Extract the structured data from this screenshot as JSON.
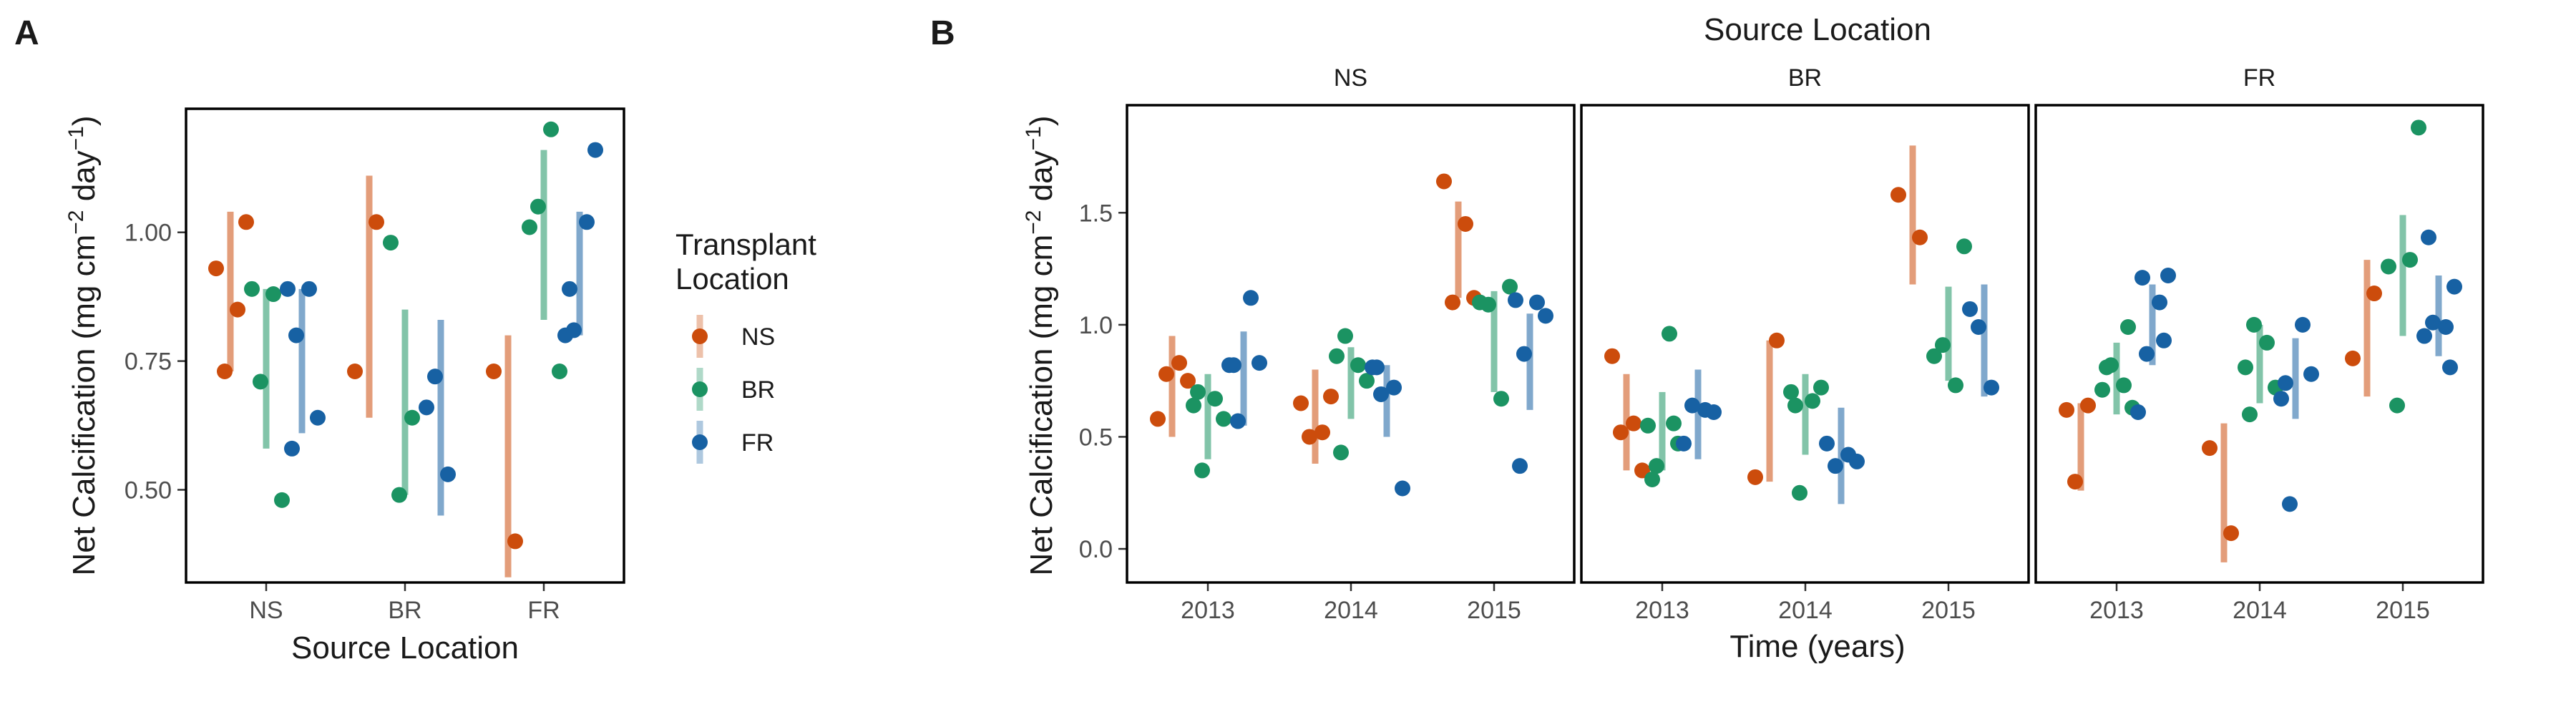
{
  "chart_data": [
    {
      "panel_label": "A",
      "type": "scatter",
      "xlabel": "Source Location",
      "ylabel": "Net Calcification (mg cm",
      "ylabel_unit_mid": " day",
      "ylabel_end": ")",
      "ylabel_sup1": "−2",
      "ylabel_sup2": "−1",
      "categories": [
        "NS",
        "BR",
        "FR"
      ],
      "yticks": [
        0.5,
        0.75,
        1.0
      ],
      "ytick_labels": [
        "0.50",
        "0.75",
        "1.00"
      ],
      "ylim": [
        0.32,
        1.24
      ],
      "legend": {
        "title_line1": "Transplant",
        "title_line2": "Location",
        "placement": "right",
        "entries": [
          {
            "name": "NS",
            "color": "#CC4C0C"
          },
          {
            "name": "BR",
            "color": "#1B9362"
          },
          {
            "name": "FR",
            "color": "#1761A3"
          }
        ]
      },
      "groups": [
        {
          "category": "NS",
          "transplant": "NS",
          "range": [
            0.73,
            1.04
          ],
          "points": [
            0.93,
            0.85,
            0.73,
            1.02
          ]
        },
        {
          "category": "NS",
          "transplant": "BR",
          "range": [
            0.58,
            0.89
          ],
          "points": [
            0.89,
            0.88,
            0.71,
            0.48
          ]
        },
        {
          "category": "NS",
          "transplant": "FR",
          "range": [
            0.61,
            0.89
          ],
          "points": [
            0.89,
            0.89,
            0.8,
            0.64,
            0.58
          ]
        },
        {
          "category": "BR",
          "transplant": "NS",
          "range": [
            0.64,
            1.11
          ],
          "points": [
            0.73,
            1.02
          ]
        },
        {
          "category": "BR",
          "transplant": "BR",
          "range": [
            0.49,
            0.85
          ],
          "points": [
            0.98,
            0.64,
            0.49
          ]
        },
        {
          "category": "BR",
          "transplant": "FR",
          "range": [
            0.45,
            0.83
          ],
          "points": [
            0.66,
            0.53,
            0.72
          ]
        },
        {
          "category": "FR",
          "transplant": "NS",
          "range": [
            0.33,
            0.8
          ],
          "points": [
            0.73,
            0.4
          ]
        },
        {
          "category": "FR",
          "transplant": "BR",
          "range": [
            0.83,
            1.16
          ],
          "points": [
            1.01,
            1.2,
            1.05,
            0.73
          ]
        },
        {
          "category": "FR",
          "transplant": "FR",
          "range": [
            0.8,
            1.04
          ],
          "points": [
            0.8,
            1.02,
            0.81,
            1.16,
            0.89
          ]
        }
      ]
    },
    {
      "panel_label": "B",
      "type": "scatter",
      "title": "Source Location",
      "xlabel": "Time (years)",
      "ylabel": "Net Calcification (mg cm",
      "ylabel_unit_mid": " day",
      "ylabel_end": ")",
      "ylabel_sup1": "−2",
      "ylabel_sup2": "−1",
      "x_categories": [
        "2013",
        "2014",
        "2015"
      ],
      "yticks": [
        0.0,
        0.5,
        1.0,
        1.5
      ],
      "ytick_labels": [
        "0.0",
        "0.5",
        "1.0",
        "1.5"
      ],
      "ylim": [
        -0.15,
        1.98
      ],
      "facets": [
        {
          "label": "NS",
          "groups": [
            {
              "year": "2013",
              "transplant": "NS",
              "range": [
                0.5,
                0.95
              ],
              "points": [
                0.58,
                0.83,
                0.78,
                0.75
              ]
            },
            {
              "year": "2013",
              "transplant": "BR",
              "range": [
                0.4,
                0.78
              ],
              "points": [
                0.64,
                0.67,
                0.35,
                0.58,
                0.7
              ]
            },
            {
              "year": "2013",
              "transplant": "FR",
              "range": [
                0.55,
                0.97
              ],
              "points": [
                0.82,
                1.12,
                0.57,
                0.83,
                0.82
              ]
            },
            {
              "year": "2014",
              "transplant": "NS",
              "range": [
                0.38,
                0.8
              ],
              "points": [
                0.65,
                0.52,
                0.5,
                0.68
              ]
            },
            {
              "year": "2014",
              "transplant": "BR",
              "range": [
                0.58,
                0.9
              ],
              "points": [
                0.86,
                0.82,
                0.95,
                0.75,
                0.43
              ]
            },
            {
              "year": "2014",
              "transplant": "FR",
              "range": [
                0.5,
                0.82
              ],
              "points": [
                0.81,
                0.72,
                0.69,
                0.27,
                0.81
              ]
            },
            {
              "year": "2015",
              "transplant": "NS",
              "range": [
                1.12,
                1.55
              ],
              "points": [
                1.64,
                1.45,
                1.1,
                1.12
              ]
            },
            {
              "year": "2015",
              "transplant": "BR",
              "range": [
                0.7,
                1.15
              ],
              "points": [
                1.1,
                0.67,
                1.09,
                1.17
              ]
            },
            {
              "year": "2015",
              "transplant": "FR",
              "range": [
                0.62,
                1.05
              ],
              "points": [
                1.11,
                1.1,
                0.87,
                1.04,
                0.37
              ]
            }
          ]
        },
        {
          "label": "BR",
          "groups": [
            {
              "year": "2013",
              "transplant": "NS",
              "range": [
                0.35,
                0.78
              ],
              "points": [
                0.86,
                0.56,
                0.52,
                0.35
              ]
            },
            {
              "year": "2013",
              "transplant": "BR",
              "range": [
                0.35,
                0.7
              ],
              "points": [
                0.55,
                0.96,
                0.37,
                0.47,
                0.31,
                0.56
              ]
            },
            {
              "year": "2013",
              "transplant": "FR",
              "range": [
                0.4,
                0.8
              ],
              "points": [
                0.47,
                0.62,
                0.64,
                0.61
              ]
            },
            {
              "year": "2014",
              "transplant": "NS",
              "range": [
                0.3,
                0.93
              ],
              "points": [
                0.32,
                0.93
              ]
            },
            {
              "year": "2014",
              "transplant": "BR",
              "range": [
                0.42,
                0.78
              ],
              "points": [
                0.7,
                0.66,
                0.25,
                0.72,
                0.64
              ]
            },
            {
              "year": "2014",
              "transplant": "FR",
              "range": [
                0.2,
                0.63
              ],
              "points": [
                0.47,
                0.42,
                0.37,
                0.39
              ]
            },
            {
              "year": "2015",
              "transplant": "NS",
              "range": [
                1.18,
                1.8
              ],
              "points": [
                1.58,
                1.39
              ]
            },
            {
              "year": "2015",
              "transplant": "BR",
              "range": [
                0.75,
                1.17
              ],
              "points": [
                0.86,
                0.73,
                0.91,
                1.35
              ]
            },
            {
              "year": "2015",
              "transplant": "FR",
              "range": [
                0.68,
                1.18
              ],
              "points": [
                1.07,
                0.72,
                0.99
              ]
            }
          ]
        },
        {
          "label": "FR",
          "groups": [
            {
              "year": "2013",
              "transplant": "NS",
              "range": [
                0.26,
                0.65
              ],
              "points": [
                0.62,
                0.64,
                0.3
              ]
            },
            {
              "year": "2013",
              "transplant": "BR",
              "range": [
                0.6,
                0.92
              ],
              "points": [
                0.71,
                0.73,
                0.82,
                0.63,
                0.81,
                0.99
              ]
            },
            {
              "year": "2013",
              "transplant": "FR",
              "range": [
                0.82,
                1.18
              ],
              "points": [
                0.61,
                1.1,
                0.87,
                1.22,
                1.21,
                0.93
              ]
            },
            {
              "year": "2014",
              "transplant": "NS",
              "range": [
                -0.06,
                0.56
              ],
              "points": [
                0.45,
                0.07
              ]
            },
            {
              "year": "2014",
              "transplant": "BR",
              "range": [
                0.65,
                1.0
              ],
              "points": [
                0.81,
                0.92,
                1.0,
                0.72,
                0.6
              ]
            },
            {
              "year": "2014",
              "transplant": "FR",
              "range": [
                0.58,
                0.94
              ],
              "points": [
                0.67,
                1.0,
                0.2,
                0.78,
                0.74
              ]
            },
            {
              "year": "2015",
              "transplant": "NS",
              "range": [
                0.68,
                1.29
              ],
              "points": [
                0.85,
                1.14
              ]
            },
            {
              "year": "2015",
              "transplant": "BR",
              "range": [
                0.95,
                1.49
              ],
              "points": [
                1.26,
                1.29,
                0.64,
                1.88
              ]
            },
            {
              "year": "2015",
              "transplant": "FR",
              "range": [
                0.86,
                1.22
              ],
              "points": [
                0.95,
                0.99,
                1.01,
                1.17,
                1.39,
                0.81
              ]
            }
          ]
        }
      ]
    }
  ]
}
